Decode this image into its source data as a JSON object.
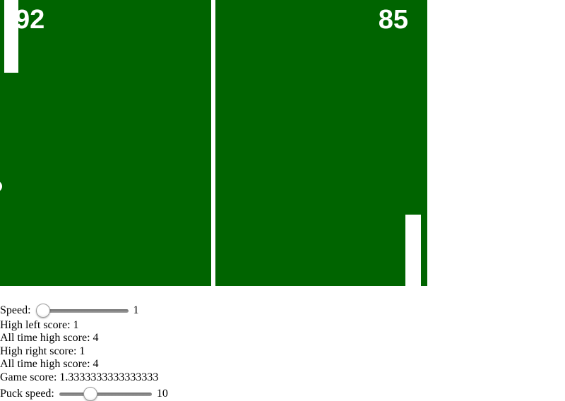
{
  "game": {
    "field_color": "#006400",
    "paddle_color": "#ffffff",
    "left_score": "92",
    "right_score": "85"
  },
  "controls": {
    "speed": {
      "label": "Speed:",
      "value": "1",
      "thumb_percent": 0
    },
    "stats": [
      "High left score: 1",
      "All time high score: 4",
      "High right score: 1",
      "All time high score: 4",
      "Game score: 1.3333333333333333"
    ],
    "puck_speed": {
      "label": "Puck speed:",
      "value": "10",
      "thumb_percent": 31
    }
  }
}
